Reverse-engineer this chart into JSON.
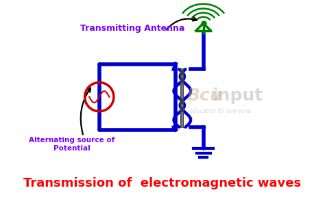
{
  "title": "Transmission of  electromagnetic waves",
  "title_color": "#ff0000",
  "title_fontsize": 13,
  "label_transmitting": "Transmitting Antenna",
  "label_transmitting_color": "#7b00ff",
  "label_alternating": "Alternating source of\nPotential",
  "label_alternating_color": "#7b00ff",
  "circuit_color": "#0000cc",
  "circuit_linewidth": 4,
  "antenna_color": "#008000",
  "ground_color": "#0000cc",
  "ac_source_color": "#cc0000",
  "background_color": "#ffffff"
}
